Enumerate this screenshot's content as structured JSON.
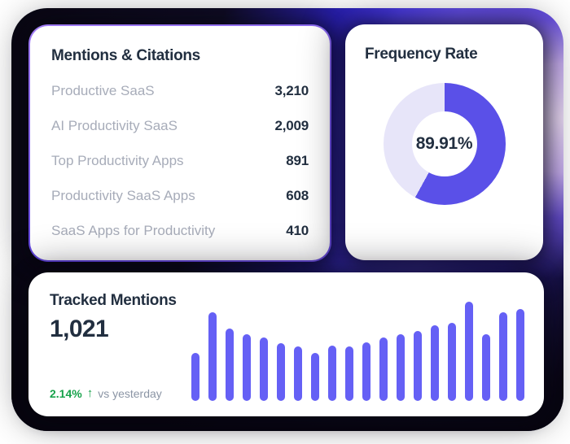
{
  "cards": {
    "mentions": {
      "title": "Mentions & Citations",
      "rows": [
        {
          "label": "Productive SaaS",
          "value": "3,210"
        },
        {
          "label": "AI Productivity SaaS",
          "value": "2,009"
        },
        {
          "label": "Top Productivity Apps",
          "value": "891"
        },
        {
          "label": "Productivity SaaS Apps",
          "value": "608"
        },
        {
          "label": "SaaS Apps for Productivity",
          "value": "410"
        }
      ]
    },
    "frequency": {
      "title": "Frequency Rate",
      "value": "89.91%"
    },
    "tracked": {
      "title": "Tracked Mentions",
      "count": "1,021",
      "delta": "2.14%",
      "delta_arrow": "↑",
      "delta_label": "vs yesterday"
    }
  },
  "colors": {
    "navy_text": "#222f40",
    "gray_label": "#a7acb9",
    "donut_fill": "#5a50e8",
    "donut_track": "#e7e5f9",
    "bar_fill": "#6560f5",
    "green": "#17a24b",
    "card_border_purple": "#7a5ae8"
  },
  "chart_data": [
    {
      "type": "donut",
      "title": "Frequency Rate",
      "center_label": "89.91%",
      "value_percent": 89.91,
      "visual_fill_percent": 58,
      "fill_color": "#5a50e8",
      "track_color": "#e7e5f9",
      "legend": "none",
      "start_angle_deg_from_top": 0,
      "direction": "clockwise"
    },
    {
      "type": "bar",
      "title": "Tracked Mentions",
      "summary_value": "1,021",
      "change_vs_yesterday": "+2.14%",
      "values": [
        59,
        109,
        89,
        82,
        78,
        71,
        67,
        59,
        68,
        67,
        72,
        78,
        82,
        86,
        93,
        96,
        122,
        82,
        109,
        113
      ],
      "value_unit": "relative bar height in px; no axis tick labels shown",
      "bar_color": "#6560f5",
      "axes": "hidden",
      "grid": false,
      "legend": "none"
    }
  ]
}
